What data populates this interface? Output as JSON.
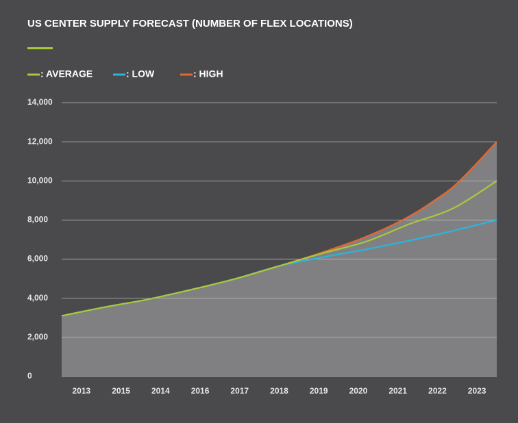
{
  "chart_data": {
    "type": "line",
    "title": "US CENTER SUPPLY FORECAST (NUMBER OF FLEX LOCATIONS)",
    "categories": [
      "2013",
      "2015",
      "2014",
      "2016",
      "2017",
      "2018",
      "2019",
      "2020",
      "2021",
      "2022",
      "2023"
    ],
    "series": [
      {
        "name": ": AVERAGE",
        "color": "#a8c93a",
        "values": [
          3100,
          3550,
          3950,
          4450,
          5000,
          5650,
          6300,
          6900,
          7800,
          8600,
          10000
        ]
      },
      {
        "name": ": LOW",
        "color": "#29b5e0",
        "values": [
          3100,
          3550,
          3950,
          4450,
          5000,
          5650,
          6100,
          6500,
          6950,
          7450,
          8000
        ]
      },
      {
        "name": ": HIGH",
        "color": "#e8672b",
        "values": [
          3100,
          3550,
          3950,
          4450,
          5000,
          5650,
          6350,
          7150,
          8200,
          9700,
          12000
        ]
      }
    ],
    "area_color": "#808083",
    "ylim": [
      0,
      14000
    ],
    "yticks": [
      0,
      {
        "value": 2000,
        "label": "2,000"
      },
      {
        "value": 4000,
        "label": "4,000"
      },
      {
        "value": 6000,
        "label": "6,000"
      },
      {
        "value": 8000,
        "label": "8,000"
      },
      {
        "value": 10000,
        "label": "10,000"
      },
      {
        "value": 12000,
        "label": "12,000"
      },
      {
        "value": 14000,
        "label": "14,000"
      }
    ],
    "grid": true
  }
}
